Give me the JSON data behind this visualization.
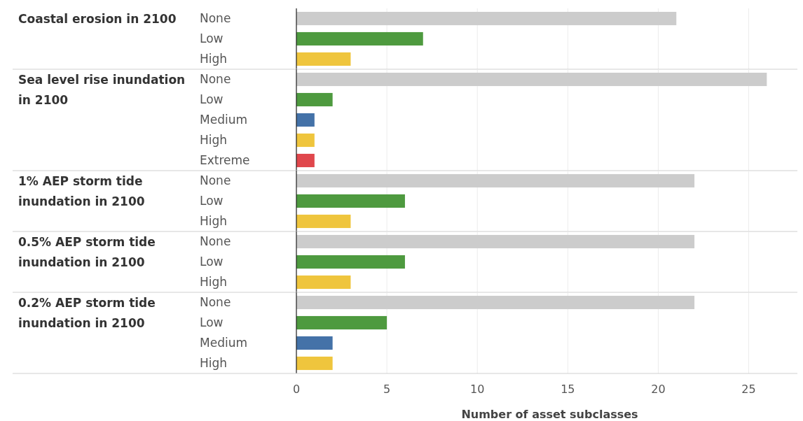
{
  "chart_data": [
    {
      "type": "bar",
      "orientation": "horizontal",
      "title": "Coastal erosion in 2100",
      "categories": [
        "None",
        "Low",
        "High"
      ],
      "values": [
        21,
        7,
        3
      ],
      "colors": [
        "#cccccc",
        "#4e9a3f",
        "#efc53d"
      ],
      "xlim": [
        0,
        28
      ],
      "xticks": [
        0,
        5,
        10,
        15,
        20,
        25
      ],
      "grid": "x",
      "tick_labels": "y"
    },
    {
      "type": "bar",
      "orientation": "horizontal",
      "title": "Sea level rise inundation in 2100",
      "categories": [
        "None",
        "Low",
        "Medium",
        "High",
        "Extreme"
      ],
      "values": [
        26,
        2,
        1,
        1,
        1
      ],
      "colors": [
        "#cccccc",
        "#4e9a3f",
        "#4472a8",
        "#efc53d",
        "#e0474c"
      ],
      "xlim": [
        0,
        28
      ],
      "xticks": [
        0,
        5,
        10,
        15,
        20,
        25
      ],
      "grid": "x",
      "tick_labels": "y"
    },
    {
      "type": "bar",
      "orientation": "horizontal",
      "title": "1% AEP storm tide inundation in 2100",
      "categories": [
        "None",
        "Low",
        "High"
      ],
      "values": [
        22,
        6,
        3
      ],
      "colors": [
        "#cccccc",
        "#4e9a3f",
        "#efc53d"
      ],
      "xlim": [
        0,
        28
      ],
      "xticks": [
        0,
        5,
        10,
        15,
        20,
        25
      ],
      "grid": "x",
      "tick_labels": "y"
    },
    {
      "type": "bar",
      "orientation": "horizontal",
      "title": "0.5% AEP storm tide inundation in 2100",
      "categories": [
        "None",
        "Low",
        "High"
      ],
      "values": [
        22,
        6,
        3
      ],
      "colors": [
        "#cccccc",
        "#4e9a3f",
        "#efc53d"
      ],
      "xlim": [
        0,
        28
      ],
      "xticks": [
        0,
        5,
        10,
        15,
        20,
        25
      ],
      "grid": "x",
      "tick_labels": "y"
    },
    {
      "type": "bar",
      "orientation": "horizontal",
      "title": "0.2% AEP storm tide inundation in 2100",
      "categories": [
        "None",
        "Low",
        "Medium",
        "High"
      ],
      "values": [
        22,
        5,
        2,
        2
      ],
      "colors": [
        "#cccccc",
        "#4e9a3f",
        "#4472a8",
        "#efc53d"
      ],
      "xlim": [
        0,
        28
      ],
      "xticks": [
        0,
        5,
        10,
        15,
        20,
        25
      ],
      "grid": "x",
      "xlabel": "Number of asset subclasses"
    }
  ]
}
